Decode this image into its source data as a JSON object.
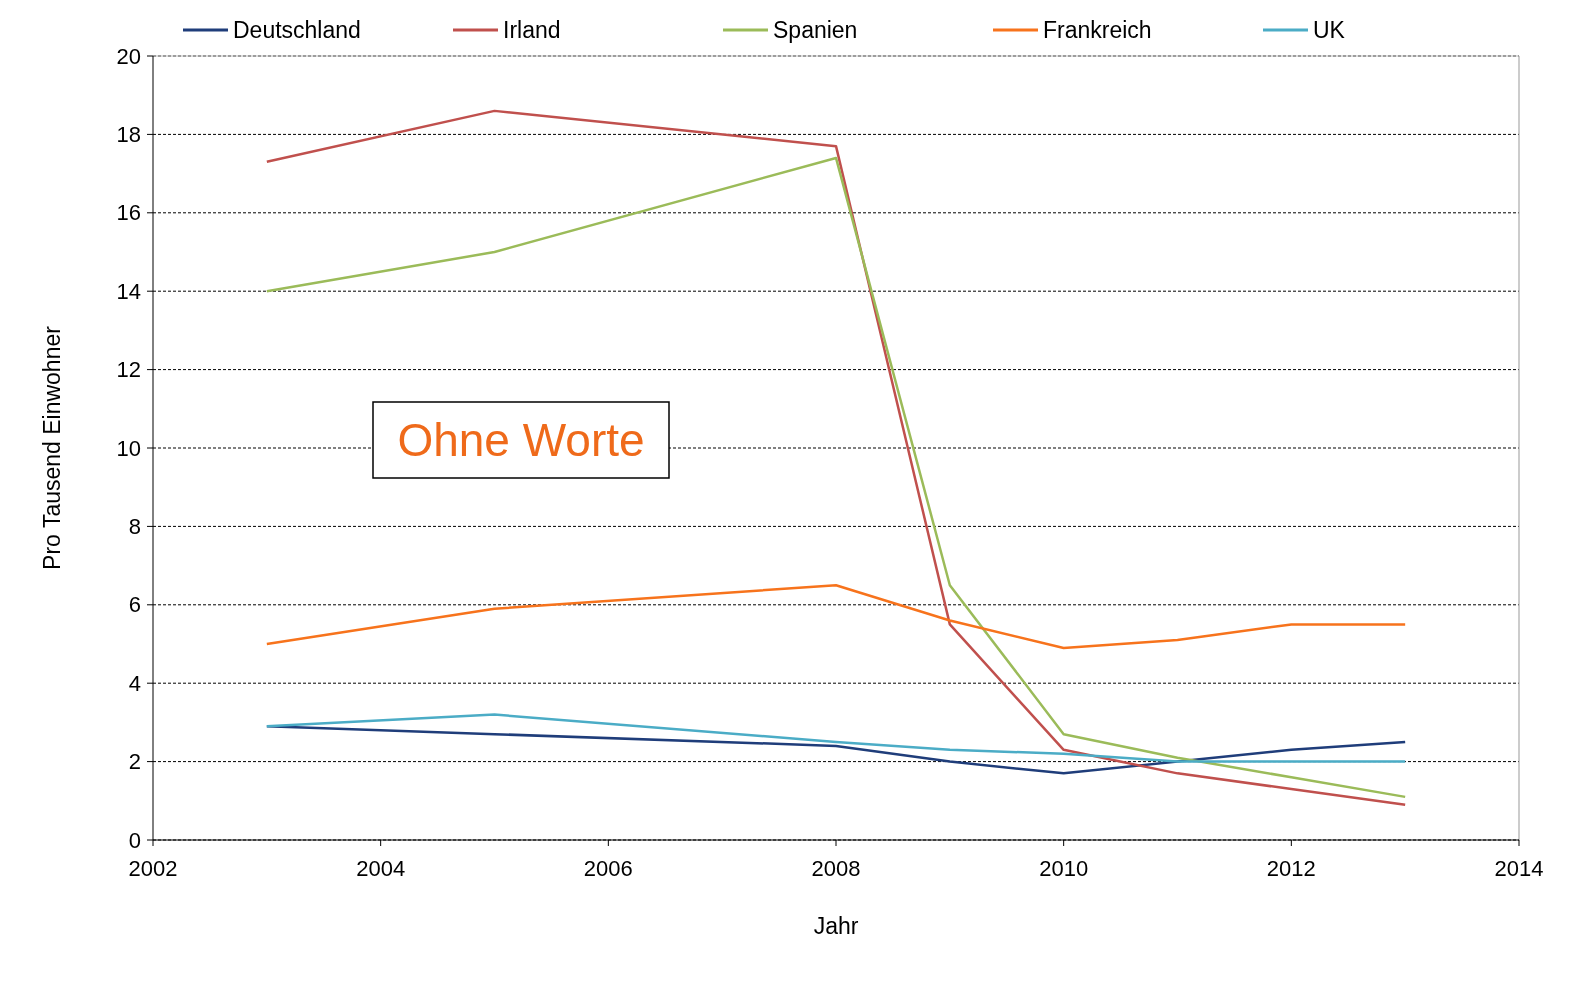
{
  "chart_data": {
    "type": "line",
    "xlabel": "Jahr",
    "ylabel": "Pro Tausend Einwohner",
    "x": [
      2003,
      2005,
      2008,
      2009,
      2010,
      2011,
      2012,
      2013
    ],
    "series": [
      {
        "name": "Deutschland",
        "color": "#1f3d7a",
        "values": [
          2.9,
          2.7,
          2.4,
          2.0,
          1.7,
          2.0,
          2.3,
          2.5
        ]
      },
      {
        "name": "Irland",
        "color": "#c0504d",
        "values": [
          17.3,
          18.6,
          17.7,
          5.5,
          2.3,
          1.7,
          1.3,
          0.9
        ]
      },
      {
        "name": "Spanien",
        "color": "#9bbb59",
        "values": [
          14.0,
          15.0,
          17.4,
          6.5,
          2.7,
          2.1,
          1.6,
          1.1
        ]
      },
      {
        "name": "Frankreich",
        "color": "#f7731c",
        "values": [
          5.0,
          5.9,
          6.5,
          5.6,
          4.9,
          5.1,
          5.5,
          5.5
        ]
      },
      {
        "name": "UK",
        "color": "#4bacc6",
        "values": [
          2.9,
          3.2,
          2.5,
          2.3,
          2.2,
          2.0,
          2.0,
          2.0
        ]
      }
    ],
    "xlim": [
      2002,
      2014
    ],
    "xticks": [
      2002,
      2004,
      2006,
      2008,
      2010,
      2012,
      2014
    ],
    "ylim": [
      0,
      20
    ],
    "yticks": [
      0,
      2,
      4,
      6,
      8,
      10,
      12,
      14,
      16,
      18,
      20
    ],
    "grid": "y",
    "legend": "top",
    "marker": "none",
    "line_style": "solid",
    "annotations": [
      "Ohne Worte"
    ]
  }
}
